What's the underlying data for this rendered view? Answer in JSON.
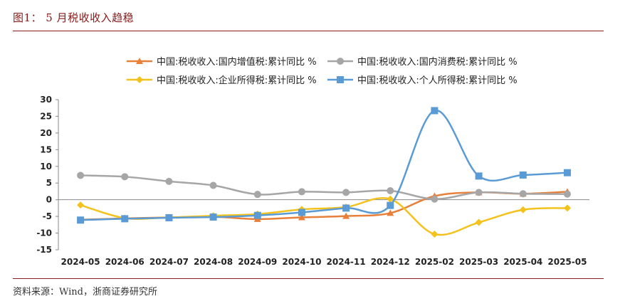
{
  "header": {
    "figure_title": "图1：  5 月税收收入趋稳"
  },
  "footer": {
    "source": "资料来源：Wind，浙商证券研究所"
  },
  "chart_data": {
    "type": "line",
    "title": "",
    "xlabel": "",
    "ylabel": "",
    "categories": [
      "2024-05",
      "2024-06",
      "2024-07",
      "2024-08",
      "2024-09",
      "2024-10",
      "2024-11",
      "2024-12",
      "2025-02",
      "2025-03",
      "2025-04",
      "2025-05"
    ],
    "ylim": [
      -15,
      30
    ],
    "yticks": [
      30,
      25,
      20,
      15,
      10,
      5,
      0,
      -5,
      -10,
      -15
    ],
    "grid": false,
    "legend_position": "top",
    "series": [
      {
        "name": "中国:税收收入:国内增值税:累计同比 %",
        "color": "#E8803A",
        "marker": "triangle",
        "values": [
          -6.0,
          -5.6,
          -5.3,
          -5.1,
          -5.8,
          -5.3,
          -4.9,
          -4.0,
          1.1,
          2.2,
          1.8,
          2.4
        ]
      },
      {
        "name": "中国:税收收入:国内消费税:累计同比 %",
        "color": "#A6A6A6",
        "marker": "circle",
        "values": [
          7.3,
          6.9,
          5.5,
          4.3,
          1.6,
          2.4,
          2.2,
          2.7,
          0.2,
          2.2,
          1.8,
          1.7
        ]
      },
      {
        "name": "中国:税收收入:企业所得税:累计同比 %",
        "color": "#F4C21D",
        "marker": "diamond",
        "values": [
          -1.6,
          -5.5,
          -5.3,
          -4.8,
          -4.3,
          -2.9,
          -2.2,
          0.2,
          -10.3,
          -6.8,
          -3.0,
          -2.5
        ]
      },
      {
        "name": "中国:税收收入:个人所得税:累计同比 %",
        "color": "#5B9BD5",
        "marker": "square",
        "values": [
          -6.1,
          -5.7,
          -5.4,
          -5.2,
          -4.7,
          -3.8,
          -2.5,
          -1.7,
          26.7,
          7.1,
          7.4,
          8.1
        ]
      }
    ]
  }
}
